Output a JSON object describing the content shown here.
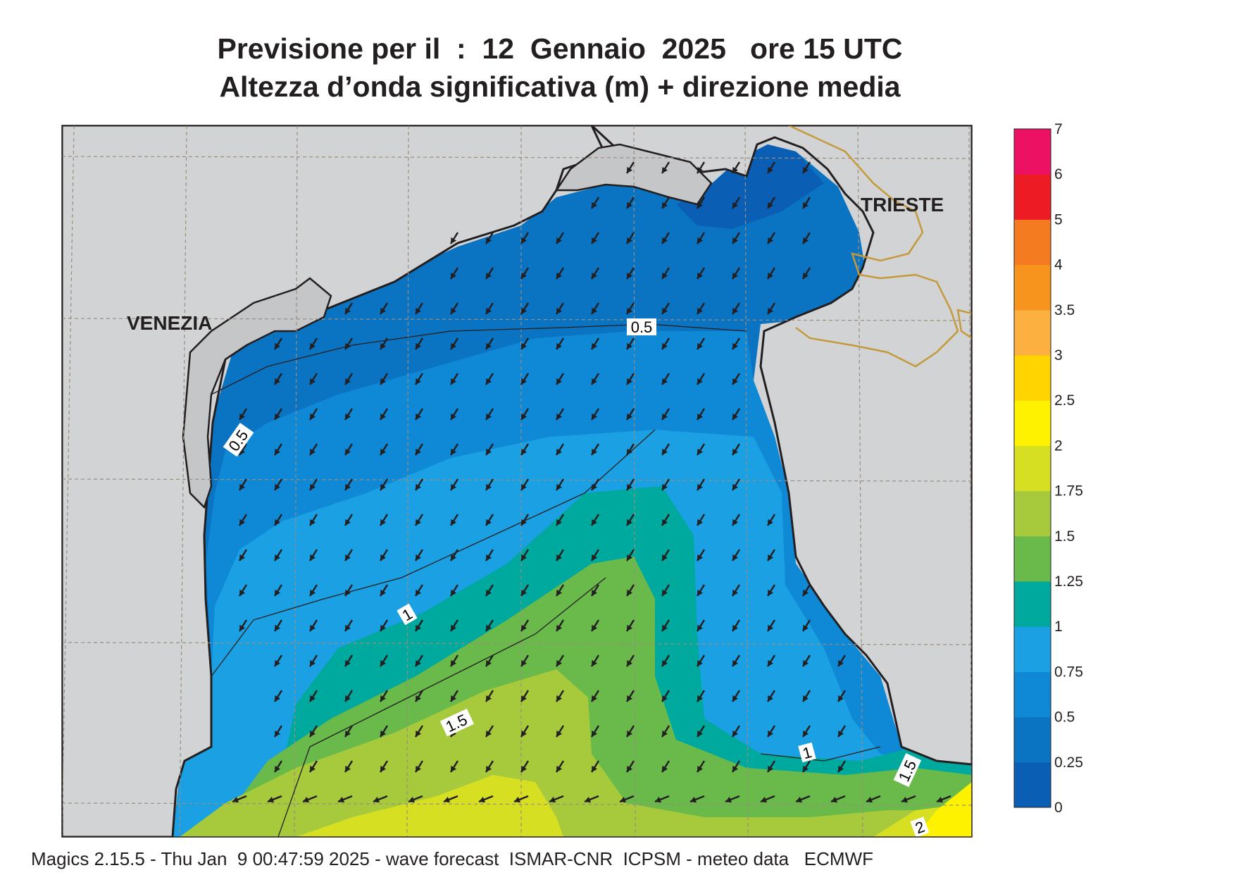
{
  "title_line1": "Previsione per il  :  12  Gennaio  2025   ore 15 UTC",
  "title_line2": "Altezza d’onda significativa (m) + direzione media",
  "cities": [
    {
      "name": "VENEZIA"
    },
    {
      "name": "TRIESTE"
    }
  ],
  "contour_labels": [
    "0.5",
    "0.5",
    "1",
    "1",
    "1.5",
    "1.5",
    "2"
  ],
  "legend": {
    "ticks": [
      "0",
      "0.25",
      "0.5",
      "0.75",
      "1",
      "1.25",
      "1.5",
      "1.75",
      "2",
      "2.5",
      "3",
      "3.5",
      "4",
      "5",
      "6",
      "7"
    ],
    "colors": [
      "#0a5fb4",
      "#0b74c2",
      "#0f88d6",
      "#1aa0e3",
      "#00a99d",
      "#6aba4b",
      "#a7c93c",
      "#d7df23",
      "#fff200",
      "#ffd400",
      "#fbb040",
      "#f7941d",
      "#f47b20",
      "#ed1c24",
      "#ec1163"
    ]
  },
  "map_colors": {
    "land": "#d1d3d4",
    "lagoon": "#c4c6c8",
    "border": "#c49a3c",
    "coast": "#231f20",
    "arrow": "#231f20"
  },
  "wave_direction_icon": "arrow-southwest-icon",
  "footer": "Magics 2.15.5 - Thu Jan  9 00:47:59 2025 - wave forecast  ISMAR-CNR  ICPSM - meteo data   ECMWF"
}
